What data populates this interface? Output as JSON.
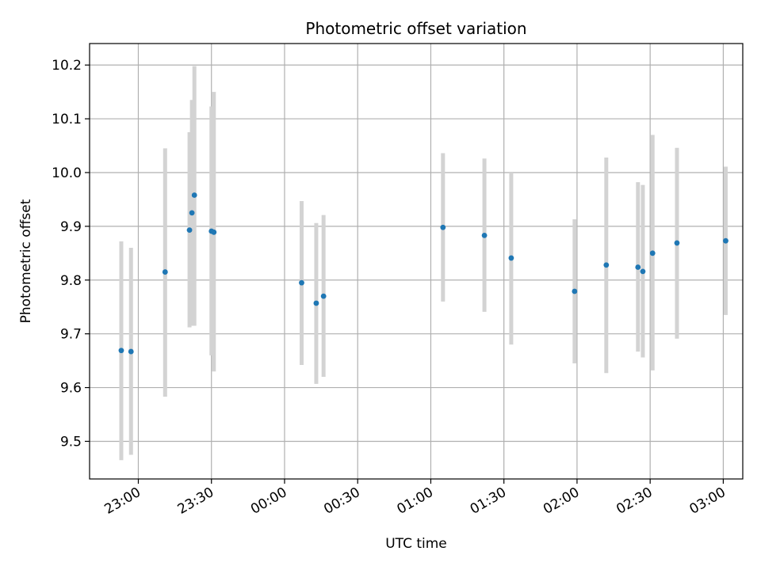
{
  "chart_data": {
    "type": "scatter",
    "title": "Photometric offset variation",
    "xlabel": "UTC time",
    "ylabel": "Photometric offset",
    "x_axis": "time",
    "x_range": [
      "22:40",
      "03:08"
    ],
    "ylim": [
      9.43,
      10.24
    ],
    "x_ticks": [
      "23:00",
      "23:30",
      "00:00",
      "00:30",
      "01:00",
      "01:30",
      "02:00",
      "02:30",
      "03:00"
    ],
    "y_ticks": [
      "9.5",
      "9.6",
      "9.7",
      "9.8",
      "9.9",
      "10.0",
      "10.1",
      "10.2"
    ],
    "grid": true,
    "marker_color": "#1f77b4",
    "errorbar_color": "#d3d3d3",
    "series": [
      {
        "points": [
          {
            "x": "22:53",
            "y": 9.669,
            "yerr_low": 9.465,
            "yerr_high": 9.872
          },
          {
            "x": "22:57",
            "y": 9.667,
            "yerr_low": 9.475,
            "yerr_high": 9.86
          },
          {
            "x": "23:11",
            "y": 9.815,
            "yerr_low": 9.583,
            "yerr_high": 10.045
          },
          {
            "x": "23:21",
            "y": 9.893,
            "yerr_low": 9.712,
            "yerr_high": 10.075
          },
          {
            "x": "23:22",
            "y": 9.925,
            "yerr_low": 9.715,
            "yerr_high": 10.135
          },
          {
            "x": "23:23",
            "y": 9.958,
            "yerr_low": 9.715,
            "yerr_high": 10.198
          },
          {
            "x": "23:30",
            "y": 9.891,
            "yerr_low": 9.66,
            "yerr_high": 10.123
          },
          {
            "x": "23:31",
            "y": 9.889,
            "yerr_low": 9.63,
            "yerr_high": 10.15
          },
          {
            "x": "00:07",
            "y": 9.795,
            "yerr_low": 9.642,
            "yerr_high": 9.947
          },
          {
            "x": "00:13",
            "y": 9.757,
            "yerr_low": 9.607,
            "yerr_high": 9.906
          },
          {
            "x": "00:16",
            "y": 9.77,
            "yerr_low": 9.62,
            "yerr_high": 9.921
          },
          {
            "x": "01:05",
            "y": 9.898,
            "yerr_low": 9.76,
            "yerr_high": 10.036
          },
          {
            "x": "01:22",
            "y": 9.883,
            "yerr_low": 9.741,
            "yerr_high": 10.026
          },
          {
            "x": "01:33",
            "y": 9.841,
            "yerr_low": 9.68,
            "yerr_high": 10.0
          },
          {
            "x": "01:59",
            "y": 9.779,
            "yerr_low": 9.645,
            "yerr_high": 9.913
          },
          {
            "x": "02:12",
            "y": 9.828,
            "yerr_low": 9.627,
            "yerr_high": 10.028
          },
          {
            "x": "02:25",
            "y": 9.824,
            "yerr_low": 9.667,
            "yerr_high": 9.982
          },
          {
            "x": "02:27",
            "y": 9.816,
            "yerr_low": 9.656,
            "yerr_high": 9.977
          },
          {
            "x": "02:31",
            "y": 9.85,
            "yerr_low": 9.632,
            "yerr_high": 10.07
          },
          {
            "x": "02:41",
            "y": 9.869,
            "yerr_low": 9.691,
            "yerr_high": 10.046
          },
          {
            "x": "03:01",
            "y": 9.873,
            "yerr_low": 9.735,
            "yerr_high": 10.011
          }
        ]
      }
    ]
  }
}
